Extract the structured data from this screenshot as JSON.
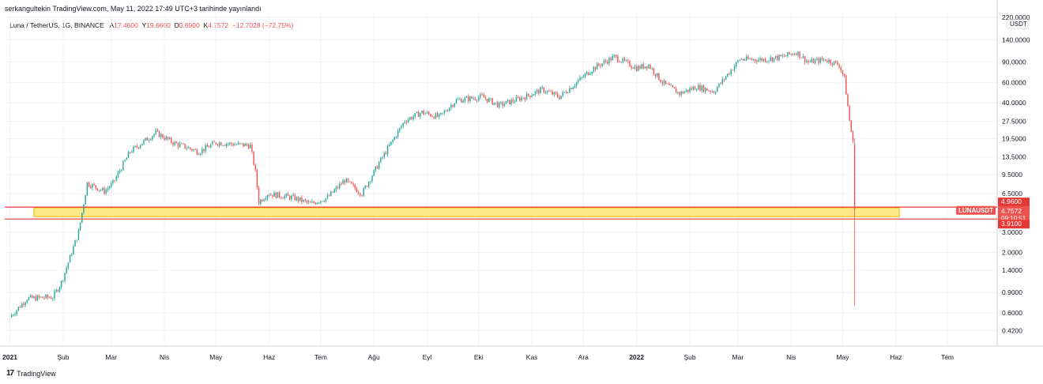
{
  "header": {
    "published": "serkangultekin TradingView.com, May 11, 2022 17:49 UTC+3 tarihinde yayınlandı"
  },
  "legend": {
    "symbol": "Luna / TetherUS, 1G, BINANCE",
    "open_label": "A",
    "open": "17.4600",
    "high_label": "Y",
    "high": "19.6600",
    "low_label": "D",
    "low": "0.6900",
    "close_label": "K",
    "close": "4.7572",
    "change": "−12.7028 (−72.75%)"
  },
  "footer": {
    "logo": "17",
    "brand": "TradingView"
  },
  "colors": {
    "up": "#26a69a",
    "down": "#ef5350",
    "zone": "#fde98a",
    "zone_border": "#e6b800",
    "line": "#e53935",
    "grid": "#f0f3fa"
  },
  "chart_data": {
    "type": "candlestick",
    "scale": "log",
    "currency_label": "USDT",
    "ylim": [
      0.35,
      220
    ],
    "y_tick_labels": [
      {
        "v": 220,
        "t": "220.0000"
      },
      {
        "v": 140,
        "t": "140.0000"
      },
      {
        "v": 90,
        "t": "90.0000"
      },
      {
        "v": 60,
        "t": "60.0000"
      },
      {
        "v": 40,
        "t": "40.0000"
      },
      {
        "v": 27.5,
        "t": "27.5000"
      },
      {
        "v": 19.5,
        "t": "19.5000"
      },
      {
        "v": 13.5,
        "t": "13.5000"
      },
      {
        "v": 9.5,
        "t": "9.5000"
      },
      {
        "v": 6.5,
        "t": "6.5000"
      },
      {
        "v": 3.0,
        "t": "3.0000"
      },
      {
        "v": 2.0,
        "t": "2.0000"
      },
      {
        "v": 1.4,
        "t": "1.4000"
      },
      {
        "v": 0.9,
        "t": "0.9000"
      },
      {
        "v": 0.6,
        "t": "0.6000"
      },
      {
        "v": 0.42,
        "t": "0.4200"
      }
    ],
    "x_ticks": [
      {
        "label": "2021",
        "day": 0,
        "bold": true
      },
      {
        "label": "Şub",
        "day": 31
      },
      {
        "label": "Mar",
        "day": 59
      },
      {
        "label": "Nis",
        "day": 90
      },
      {
        "label": "May",
        "day": 120
      },
      {
        "label": "Haz",
        "day": 151
      },
      {
        "label": "Tem",
        "day": 181
      },
      {
        "label": "Ağu",
        "day": 212
      },
      {
        "label": "Eyl",
        "day": 243
      },
      {
        "label": "Eki",
        "day": 273
      },
      {
        "label": "Kas",
        "day": 304
      },
      {
        "label": "Ara",
        "day": 334
      },
      {
        "label": "2022",
        "day": 365,
        "bold": true
      },
      {
        "label": "Şub",
        "day": 396
      },
      {
        "label": "Mar",
        "day": 424
      },
      {
        "label": "Nis",
        "day": 455
      },
      {
        "label": "May",
        "day": 485
      },
      {
        "label": "Haz",
        "day": 516
      },
      {
        "label": "Tem",
        "day": 546
      }
    ],
    "x_range_days": [
      -3,
      575
    ],
    "anchors": [
      [
        0,
        0.55
      ],
      [
        10,
        0.8
      ],
      [
        25,
        0.82
      ],
      [
        30,
        1.1
      ],
      [
        40,
        3.0
      ],
      [
        45,
        8.0
      ],
      [
        55,
        6.8
      ],
      [
        60,
        8.0
      ],
      [
        70,
        15
      ],
      [
        85,
        22
      ],
      [
        95,
        18
      ],
      [
        110,
        15
      ],
      [
        120,
        18
      ],
      [
        140,
        17
      ],
      [
        143,
        10
      ],
      [
        145,
        5.5
      ],
      [
        150,
        6.5
      ],
      [
        165,
        6.0
      ],
      [
        175,
        5.3
      ],
      [
        185,
        6.0
      ],
      [
        195,
        8.5
      ],
      [
        205,
        6.5
      ],
      [
        215,
        12
      ],
      [
        230,
        28
      ],
      [
        240,
        33
      ],
      [
        250,
        30
      ],
      [
        260,
        42
      ],
      [
        275,
        45
      ],
      [
        285,
        38
      ],
      [
        300,
        45
      ],
      [
        310,
        52
      ],
      [
        320,
        45
      ],
      [
        330,
        60
      ],
      [
        340,
        80
      ],
      [
        352,
        100
      ],
      [
        365,
        80
      ],
      [
        372,
        85
      ],
      [
        380,
        60
      ],
      [
        390,
        48
      ],
      [
        400,
        55
      ],
      [
        410,
        50
      ],
      [
        425,
        95
      ],
      [
        440,
        95
      ],
      [
        450,
        100
      ],
      [
        458,
        110
      ],
      [
        465,
        90
      ],
      [
        475,
        95
      ],
      [
        483,
        85
      ],
      [
        486,
        65
      ],
      [
        489,
        28
      ],
      [
        491,
        18
      ]
    ],
    "last_candle": {
      "day": 492,
      "open": 17.46,
      "high": 19.66,
      "low": 0.69,
      "close": 4.7572
    },
    "zone": {
      "day_from": 14,
      "day_to": 518,
      "from": 4.1,
      "to": 4.9
    },
    "horizontal_lines": [
      {
        "value": 4.96,
        "label": "4.9600"
      },
      {
        "value": 3.91,
        "label": "3.9100"
      }
    ],
    "price_tag": {
      "symbol": "LUNAUSDT",
      "value": 4.7572,
      "label": "4.7572",
      "countdown": "09:10:51"
    }
  }
}
